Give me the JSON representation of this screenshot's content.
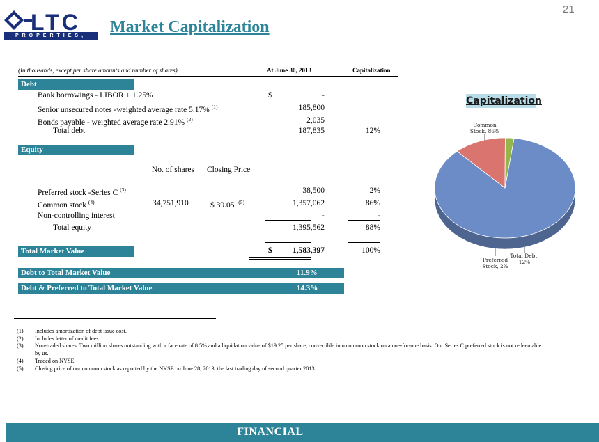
{
  "header": {
    "logo_text": "LTC",
    "logo_tagline": "PROPERTIES, INC.",
    "title": "Market Capitalization"
  },
  "table": {
    "header_note": "(In thousands, except per share amounts and number of shares)",
    "col_date": "At June 30, 2013",
    "col_cap": "Capitalization",
    "debt_label": "Debt",
    "debt_rows": [
      {
        "label": "Bank borrowings - LIBOR + 1.25%",
        "sup": "",
        "currency": "$",
        "amount": "-",
        "cap": ""
      },
      {
        "label": "Senior unsecured notes -weighted average rate 5.17%",
        "sup": "(1)",
        "currency": "",
        "amount": "185,800",
        "cap": ""
      },
      {
        "label": "Bonds payable  - weighted average rate 2.91%",
        "sup": "(2)",
        "currency": "",
        "amount": "2,035",
        "cap": ""
      }
    ],
    "total_debt": {
      "label": "Total debt",
      "amount": "187,835",
      "cap": "12%"
    },
    "equity_label": "Equity",
    "col_shares": "No. of shares",
    "col_price": "Closing Price",
    "equity_rows": [
      {
        "label": "Preferred stock -Series C",
        "sup": "(3)",
        "shares": "",
        "price": "",
        "price_sup": "",
        "amount": "38,500",
        "cap": "2%"
      },
      {
        "label": "Common stock",
        "sup": "(4)",
        "shares": "34,751,910",
        "price": "$  39.05",
        "price_sup": "(5)",
        "amount": "1,357,062",
        "cap": "86%"
      },
      {
        "label": "Non-controlling interest",
        "sup": "",
        "shares": "",
        "price": "",
        "price_sup": "",
        "amount": "-",
        "cap": "-"
      }
    ],
    "total_equity": {
      "label": "Total equity",
      "amount": "1,395,562",
      "cap": "88%"
    },
    "total_market": {
      "label": "Total Market Value",
      "currency": "$",
      "amount": "1,583,397",
      "cap": "100%"
    },
    "ratio1": {
      "label": "Debt to Total Market Value",
      "value": "11.9%"
    },
    "ratio2": {
      "label": "Debt & Preferred to Total Market Value",
      "value": "14.3%"
    }
  },
  "footnotes": [
    {
      "num": "(1)",
      "text": "Includes amortization of debt issue cost."
    },
    {
      "num": "(2)",
      "text": "Includes letter of credit fees."
    },
    {
      "num": "(3)",
      "text": "Non-traded shares.  Two million shares outstanding with a face rate of 8.5% and a liquidation value of $19.25 per share, convertible into common stock on a one-for-one basis.  Our Series C preferred stock is not redeemable by us."
    },
    {
      "num": "(4)",
      "text": "Traded on NYSE."
    },
    {
      "num": "(5)",
      "text": "Closing price of our common stock as reported by the NYSE on June 28, 2013, the last trading day of second quarter 2013."
    }
  ],
  "chart": {
    "title": "Capitalization",
    "slices": [
      {
        "name": "Common Stock",
        "value": 86,
        "label_line1": "Common",
        "label_line2": "Stock, 86%",
        "color": "#6b8cc6"
      },
      {
        "name": "Total Debt",
        "value": 12,
        "label_line1": "Total Debt,",
        "label_line2": "12%",
        "color": "#d9756e"
      },
      {
        "name": "Preferred Stock",
        "value": 2,
        "label_line1": "Preferred",
        "label_line2": "Stock, 2%",
        "color": "#95b64a"
      }
    ]
  },
  "footer": {
    "section": "FINANCIAL",
    "page_number": "21"
  }
}
